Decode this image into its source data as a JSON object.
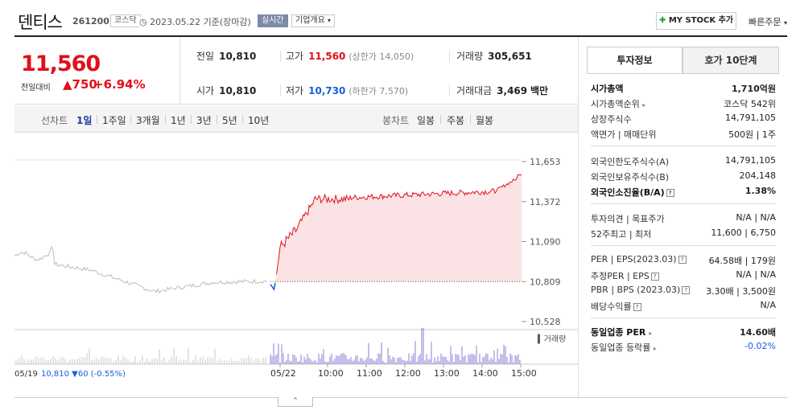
{
  "header": {
    "name": "덴티스",
    "code": "261200",
    "market": "코스닥",
    "date_status": "2023.05.22 기준(장마감)",
    "live_label": "실시간",
    "company_info_label": "기업개요",
    "mystock_label": "MY STOCK 추가",
    "quick_order_label": "빠른주문"
  },
  "quote": {
    "price": "11,560",
    "change_label": "전일대비",
    "change": "▲750",
    "change_pct": "+6.94%",
    "prev_close_label": "전일",
    "prev_close": "10,810",
    "high_label": "고가",
    "high": "11,560",
    "upper_limit": "(상한가 14,050)",
    "volume_label": "거래량",
    "volume": "305,651",
    "open_label": "시가",
    "open": "10,810",
    "low_label": "저가",
    "low": "10,730",
    "lower_limit": "(하한가 7,570)",
    "amount_label": "거래대금",
    "amount": "3,469",
    "amount_unit": "백만"
  },
  "periods": {
    "line_label": "선차트",
    "line_tabs": [
      "1일",
      "1주일",
      "3개월",
      "1년",
      "3년",
      "5년",
      "10년"
    ],
    "candle_label": "봉차트",
    "candle_tabs": [
      "일봉",
      "주봉",
      "월봉"
    ]
  },
  "chart": {
    "y_ticks": [
      "11,653",
      "11,372",
      "11,090",
      "10,809",
      "10,528"
    ],
    "y_range": [
      10528,
      11653
    ],
    "prev_close_value": 10809,
    "x_ticks": [
      "05/22",
      "10:00",
      "11:00",
      "12:00",
      "13:00",
      "14:00",
      "15:00"
    ],
    "prev_day_label": "05/19",
    "prev_day_close": "10,810",
    "prev_day_change": "▼60",
    "prev_day_pct": "(-0.55%)",
    "volume_label": "거래량",
    "colors": {
      "up": "#e0101a",
      "down": "#1560d6",
      "area": "#fbe3e5",
      "prev": "#bbbbbb"
    }
  },
  "sidebar": {
    "tab_invest": "투자정보",
    "tab_hoga": "호가 10단계",
    "market_cap_label": "시가총액",
    "market_cap": "1,710억원",
    "rank_label": "시가총액순위",
    "rank": "코스닥 542위",
    "shares_label": "상장주식수",
    "shares": "14,791,105",
    "par_label": "액면가 | 매매단위",
    "par": "500원 | 1주",
    "foreign_limit_label": "외국인한도주식수(A)",
    "foreign_limit": "14,791,105",
    "foreign_hold_label": "외국인보유주식수(B)",
    "foreign_hold": "204,148",
    "foreign_ratio_label": "외국인소진율(B/A)",
    "foreign_ratio": "1.38%",
    "opinion_label": "투자의견 | 목표주가",
    "opinion": "N/A | N/A",
    "w52_label": "52주최고 | 최저",
    "w52": "11,600 | 6,750",
    "per_label": "PER | EPS(2023.03)",
    "per": "64.58배 | 179원",
    "est_per_label": "추정PER | EPS",
    "est_per": "N/A | N/A",
    "pbr_label": "PBR | BPS (2023.03)",
    "pbr": "3.30배 | 3,500원",
    "div_label": "배당수익률",
    "div": "N/A",
    "sector_per_label": "동일업종 PER",
    "sector_per": "14.60배",
    "sector_rate_label": "동일업종 등락률",
    "sector_rate": "-0.02%"
  }
}
